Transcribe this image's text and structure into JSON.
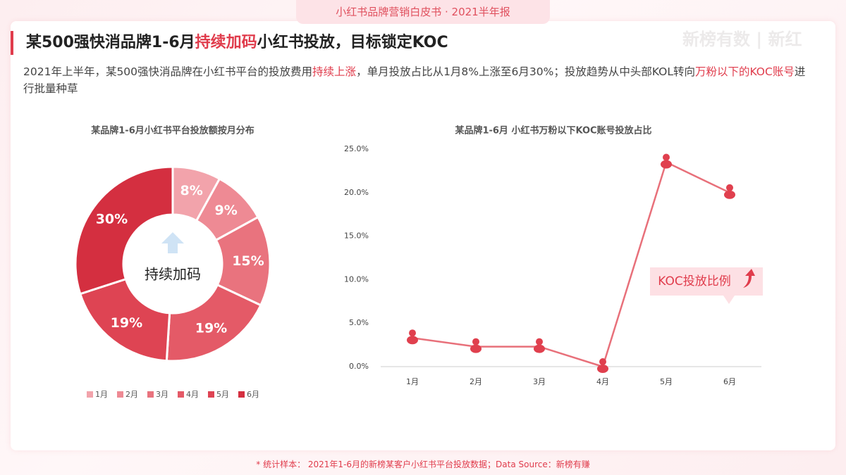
{
  "header": "小红书品牌营销白皮书 · 2021半年报",
  "watermark": "新榜有数 | 新红",
  "title_parts": [
    "某500强快消品牌1-6月",
    "持续加码",
    "小红书投放，目标锁定KOC"
  ],
  "subtitle_parts": [
    "2021年上半年，某500强快消品牌在小红书平台的投放费用",
    "持续上涨",
    "，单月投放占比从1月8%上涨至6月30%；投放趋势从中头部KOL转向",
    "万粉以下的KOC账号",
    "进行批量种草"
  ],
  "footer": "* 统计样本： 2021年1-6月的新榜某客户小红书平台投放数据；Data Source：新榜有赚",
  "chart_data": [
    {
      "type": "donut",
      "title": "某品牌1-6月小红书平台投放额按月分布",
      "categories": [
        "1月",
        "2月",
        "3月",
        "4月",
        "5月",
        "6月"
      ],
      "values": [
        8,
        9,
        15,
        19,
        19,
        30
      ],
      "value_labels": [
        "8%",
        "9%",
        "15%",
        "19%",
        "19%",
        "30%"
      ],
      "colors": [
        "#f2a3ab",
        "#ee8a94",
        "#e9737e",
        "#e45a67",
        "#de4453",
        "#d42f40"
      ],
      "center_label": "持续加码",
      "legend": "bottom"
    },
    {
      "type": "line",
      "title": "某品牌1-6月 小红书万粉以下KOC账号投放占比",
      "categories": [
        "1月",
        "2月",
        "3月",
        "4月",
        "5月",
        "6月"
      ],
      "series": [
        {
          "name": "KOC投放比例",
          "color": "#e8707a",
          "values": [
            3.3,
            2.3,
            2.3,
            0,
            23.5,
            20.0
          ]
        }
      ],
      "ylim": [
        0,
        25
      ],
      "yticks": [
        {
          "value": 0,
          "label": "0.0%"
        },
        {
          "value": 5,
          "label": "5.0%"
        },
        {
          "value": 10,
          "label": "10.0%"
        },
        {
          "value": 15,
          "label": "15.0%"
        },
        {
          "value": 20,
          "label": "20.0%"
        },
        {
          "value": 25,
          "label": "25.0%"
        }
      ],
      "grid": false
    }
  ]
}
